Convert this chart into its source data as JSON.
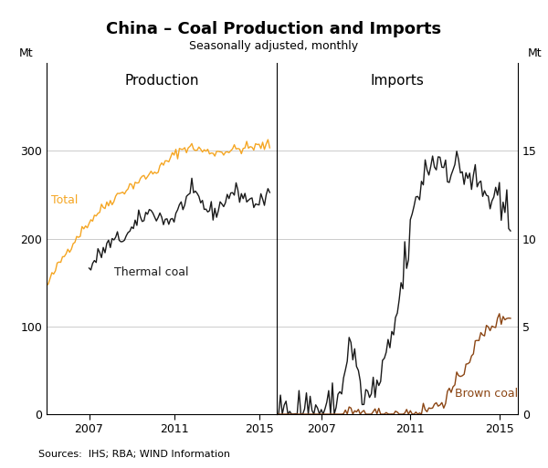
{
  "title": "China – Coal Production and Imports",
  "subtitle": "Seasonally adjusted, monthly",
  "left_panel_title": "Production",
  "right_panel_title": "Imports",
  "ylabel_left": "Mt",
  "ylabel_right": "Mt",
  "source": "Sources:  IHS; RBA; WIND Information",
  "left_ylim": [
    0,
    400
  ],
  "left_yticks": [
    0,
    100,
    200,
    300
  ],
  "right_ylim": [
    0,
    20
  ],
  "right_yticks": [
    0,
    5,
    10,
    15
  ],
  "xstart": 2005.0,
  "xend": 2015.75,
  "xtick_years_left": [
    2007,
    2011,
    2015
  ],
  "xtick_years_right": [
    2007,
    2011,
    2015
  ],
  "colors": {
    "total": "#F5A623",
    "thermal": "#1a1a1a",
    "imports_black": "#1a1a1a",
    "brown_coal": "#8B4513"
  },
  "line_width": 1.0,
  "background_color": "#ffffff",
  "grid_color": "#cccccc",
  "title_fontsize": 13,
  "subtitle_fontsize": 9,
  "panel_title_fontsize": 11,
  "tick_fontsize": 9,
  "label_fontsize": 9,
  "annotation_fontsize": 9,
  "source_fontsize": 8
}
